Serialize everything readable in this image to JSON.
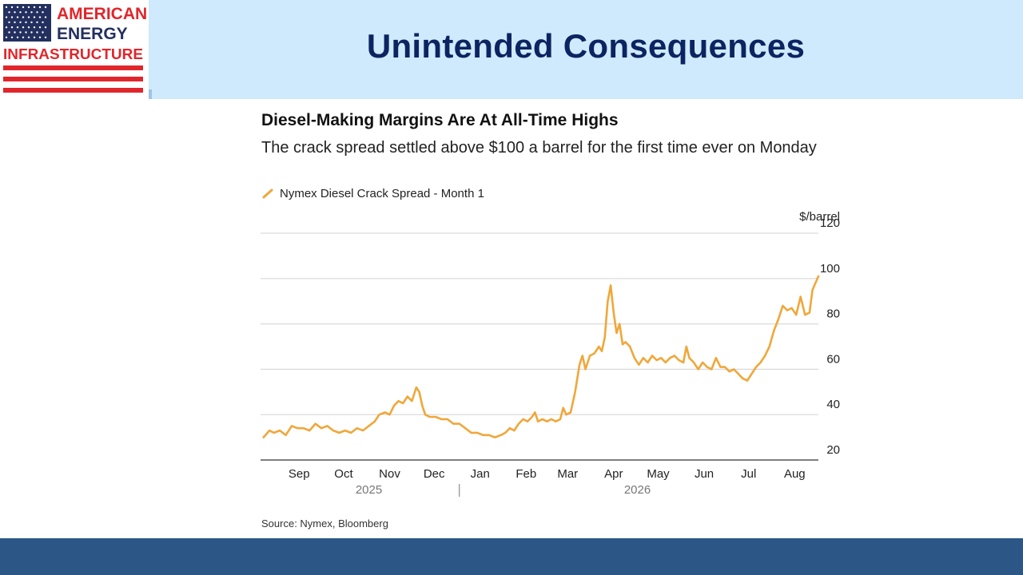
{
  "slide": {
    "title": "Unintended Consequences",
    "logo": {
      "lines": [
        "AMERICAN",
        "ENERGY",
        "INFRASTRUCTURE"
      ],
      "colors": {
        "navy": "#23305f",
        "red": "#e0262b"
      }
    },
    "colors": {
      "header_band": "#cfeafc",
      "footer_band": "#2b5686",
      "title": "#0c2461"
    }
  },
  "chart_data": {
    "type": "line",
    "title": "Diesel-Making Margins Are At All-Time Highs",
    "subtitle": "The crack spread settled above $100 a barrel for the first time ever on Monday",
    "ylabel": "$/barrel",
    "ylim": [
      20,
      120
    ],
    "yticks": [
      20,
      40,
      60,
      80,
      100,
      120
    ],
    "grid": true,
    "x_domain": [
      "2025-08-20",
      "2026-08-31"
    ],
    "month_ticks": [
      {
        "label": "Sep",
        "date": "2025-09-15"
      },
      {
        "label": "Oct",
        "date": "2025-10-15"
      },
      {
        "label": "Nov",
        "date": "2025-11-15"
      },
      {
        "label": "Dec",
        "date": "2025-12-15"
      },
      {
        "label": "Jan",
        "date": "2026-01-15"
      },
      {
        "label": "Feb",
        "date": "2026-02-15"
      },
      {
        "label": "Mar",
        "date": "2026-03-15"
      },
      {
        "label": "Apr",
        "date": "2026-04-15"
      },
      {
        "label": "May",
        "date": "2026-05-15"
      },
      {
        "label": "Jun",
        "date": "2026-06-15"
      },
      {
        "label": "Jul",
        "date": "2026-07-15"
      },
      {
        "label": "Aug",
        "date": "2026-08-15"
      }
    ],
    "year_labels": [
      {
        "label": "2025",
        "date": "2025-11-01"
      },
      {
        "label": "2026",
        "date": "2026-05-01"
      }
    ],
    "year_divider": "2026-01-01",
    "legend_position": "top-left",
    "series": [
      {
        "name": "Nymex Diesel Crack Spread - Month 1",
        "color": "#f0a73a",
        "points": [
          [
            "2025-08-22",
            30
          ],
          [
            "2025-08-26",
            33
          ],
          [
            "2025-08-29",
            32
          ],
          [
            "2025-09-02",
            33
          ],
          [
            "2025-09-06",
            31
          ],
          [
            "2025-09-10",
            35
          ],
          [
            "2025-09-14",
            34
          ],
          [
            "2025-09-18",
            34
          ],
          [
            "2025-09-22",
            33
          ],
          [
            "2025-09-26",
            36
          ],
          [
            "2025-09-30",
            34
          ],
          [
            "2025-10-04",
            35
          ],
          [
            "2025-10-08",
            33
          ],
          [
            "2025-10-12",
            32
          ],
          [
            "2025-10-16",
            33
          ],
          [
            "2025-10-20",
            32
          ],
          [
            "2025-10-24",
            34
          ],
          [
            "2025-10-28",
            33
          ],
          [
            "2025-11-01",
            35
          ],
          [
            "2025-11-05",
            37
          ],
          [
            "2025-11-08",
            40
          ],
          [
            "2025-11-12",
            41
          ],
          [
            "2025-11-15",
            40
          ],
          [
            "2025-11-18",
            44
          ],
          [
            "2025-11-21",
            46
          ],
          [
            "2025-11-24",
            45
          ],
          [
            "2025-11-27",
            48
          ],
          [
            "2025-11-30",
            46
          ],
          [
            "2025-12-03",
            52
          ],
          [
            "2025-12-05",
            50
          ],
          [
            "2025-12-07",
            44
          ],
          [
            "2025-12-09",
            40
          ],
          [
            "2025-12-12",
            39
          ],
          [
            "2025-12-16",
            39
          ],
          [
            "2025-12-20",
            38
          ],
          [
            "2025-12-24",
            38
          ],
          [
            "2025-12-28",
            36
          ],
          [
            "2026-01-01",
            36
          ],
          [
            "2026-01-05",
            34
          ],
          [
            "2026-01-09",
            32
          ],
          [
            "2026-01-13",
            32
          ],
          [
            "2026-01-17",
            31
          ],
          [
            "2026-01-21",
            31
          ],
          [
            "2026-01-25",
            30
          ],
          [
            "2026-01-29",
            31
          ],
          [
            "2026-02-01",
            32
          ],
          [
            "2026-02-04",
            34
          ],
          [
            "2026-02-07",
            33
          ],
          [
            "2026-02-10",
            36
          ],
          [
            "2026-02-13",
            38
          ],
          [
            "2026-02-16",
            37
          ],
          [
            "2026-02-19",
            39
          ],
          [
            "2026-02-21",
            41
          ],
          [
            "2026-02-23",
            37
          ],
          [
            "2026-02-26",
            38
          ],
          [
            "2026-03-01",
            37
          ],
          [
            "2026-03-04",
            38
          ],
          [
            "2026-03-07",
            37
          ],
          [
            "2026-03-10",
            38
          ],
          [
            "2026-03-12",
            43
          ],
          [
            "2026-03-14",
            40
          ],
          [
            "2026-03-17",
            41
          ],
          [
            "2026-03-20",
            50
          ],
          [
            "2026-03-23",
            62
          ],
          [
            "2026-03-25",
            66
          ],
          [
            "2026-03-27",
            60
          ],
          [
            "2026-03-30",
            66
          ],
          [
            "2026-04-02",
            67
          ],
          [
            "2026-04-05",
            70
          ],
          [
            "2026-04-07",
            68
          ],
          [
            "2026-04-09",
            74
          ],
          [
            "2026-04-11",
            90
          ],
          [
            "2026-04-13",
            97
          ],
          [
            "2026-04-15",
            85
          ],
          [
            "2026-04-17",
            76
          ],
          [
            "2026-04-19",
            80
          ],
          [
            "2026-04-21",
            71
          ],
          [
            "2026-04-23",
            72
          ],
          [
            "2026-04-26",
            70
          ],
          [
            "2026-04-29",
            65
          ],
          [
            "2026-05-02",
            62
          ],
          [
            "2026-05-05",
            65
          ],
          [
            "2026-05-08",
            63
          ],
          [
            "2026-05-11",
            66
          ],
          [
            "2026-05-14",
            64
          ],
          [
            "2026-05-17",
            65
          ],
          [
            "2026-05-20",
            63
          ],
          [
            "2026-05-23",
            65
          ],
          [
            "2026-05-26",
            66
          ],
          [
            "2026-05-29",
            64
          ],
          [
            "2026-06-01",
            63
          ],
          [
            "2026-06-03",
            70
          ],
          [
            "2026-06-05",
            65
          ],
          [
            "2026-06-08",
            63
          ],
          [
            "2026-06-11",
            60
          ],
          [
            "2026-06-14",
            63
          ],
          [
            "2026-06-17",
            61
          ],
          [
            "2026-06-20",
            60
          ],
          [
            "2026-06-23",
            65
          ],
          [
            "2026-06-26",
            61
          ],
          [
            "2026-06-29",
            61
          ],
          [
            "2026-07-02",
            59
          ],
          [
            "2026-07-05",
            60
          ],
          [
            "2026-07-08",
            58
          ],
          [
            "2026-07-11",
            56
          ],
          [
            "2026-07-14",
            55
          ],
          [
            "2026-07-17",
            58
          ],
          [
            "2026-07-20",
            61
          ],
          [
            "2026-07-23",
            63
          ],
          [
            "2026-07-26",
            66
          ],
          [
            "2026-07-29",
            70
          ],
          [
            "2026-08-01",
            77
          ],
          [
            "2026-08-04",
            82
          ],
          [
            "2026-08-07",
            88
          ],
          [
            "2026-08-10",
            86
          ],
          [
            "2026-08-13",
            87
          ],
          [
            "2026-08-16",
            84
          ],
          [
            "2026-08-19",
            92
          ],
          [
            "2026-08-22",
            84
          ],
          [
            "2026-08-25",
            85
          ],
          [
            "2026-08-27",
            95
          ],
          [
            "2026-08-29",
            98
          ],
          [
            "2026-08-31",
            101
          ]
        ]
      }
    ],
    "source": "Source: Nymex, Bloomberg"
  }
}
